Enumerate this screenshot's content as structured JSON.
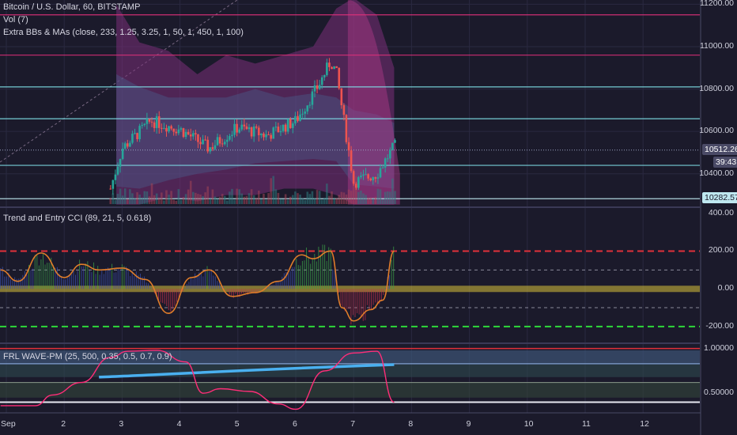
{
  "header": {
    "title": "Bitcoin / U.S. Dollar, 60, BITSTAMP",
    "volume": "Vol (7)",
    "indicator": "Extra BBs & MAs (close, 233, 1.25, 3.25, 1, 50, 1, 450, 1, 100)"
  },
  "panes": {
    "cci_title": "Trend and Entry CCI (89, 21, 5, 0.618)",
    "wave_title": "FRL WAVE-PM (25, 500, 0.35, 0.5, 0.7, 0.9)"
  },
  "colors": {
    "background": "#1b1a2b",
    "candle_up": "#26a69a",
    "candle_down": "#ef5350",
    "cci_line": "#e07d2a",
    "wave_line": "#ff2d78",
    "band_fill": "#8e3d8a"
  },
  "chart_data": [
    {
      "type": "candlestick",
      "title": "Bitcoin / U.S. Dollar, 60, BITSTAMP",
      "y_ticks": [
        11200,
        11000,
        10800,
        10600,
        10400
      ],
      "ylim": [
        10250,
        11220
      ],
      "x_ticks": [
        "Sep",
        "2",
        "3",
        "4",
        "5",
        "6",
        "7",
        "8",
        "9",
        "10",
        "11",
        "12"
      ],
      "last_price": 10512.26,
      "last_price_label": "10512.26",
      "countdown": "39:43",
      "low_marker": 10282.57,
      "low_marker_label": "10282.57",
      "horizontal_levels": [
        11150,
        10960,
        10810,
        10660,
        10440,
        10282.57
      ],
      "close_path_by_day": {
        "x": [
          2.8,
          3.0,
          3.5,
          4.0,
          4.5,
          5.0,
          5.5,
          6.0,
          6.4,
          6.6,
          6.7,
          7.0,
          7.4,
          7.7
        ],
        "y": [
          10330,
          10520,
          10650,
          10610,
          10520,
          10620,
          10580,
          10650,
          10820,
          10930,
          10880,
          10360,
          10400,
          10530
        ]
      }
    },
    {
      "type": "line",
      "title": "Trend and Entry CCI (89, 21, 5, 0.618)",
      "y_ticks": [
        400,
        200,
        0,
        -200
      ],
      "ylim": [
        -280,
        420
      ],
      "reference_lines": [
        200,
        100,
        0,
        -100,
        -200
      ],
      "x": [
        0.9,
        1.2,
        1.6,
        2.0,
        2.3,
        2.6,
        3.0,
        3.4,
        3.8,
        4.2,
        4.5,
        4.9,
        5.3,
        5.7,
        6.1,
        6.3,
        6.6,
        6.8,
        7.0,
        7.3,
        7.5,
        7.7
      ],
      "y": [
        100,
        40,
        190,
        60,
        130,
        100,
        110,
        50,
        -130,
        60,
        100,
        -40,
        -20,
        40,
        180,
        160,
        200,
        -100,
        -170,
        -110,
        -60,
        200
      ]
    },
    {
      "type": "line",
      "title": "FRL WAVE-PM (25, 500, 0.35, 0.5, 0.7, 0.9)",
      "y_ticks": [
        1.0,
        0.5
      ],
      "y_tick_labels": [
        "1.00000",
        "0.50000"
      ],
      "ylim": [
        0.28,
        1.05
      ],
      "x": [
        0.9,
        1.5,
        1.8,
        2.3,
        2.8,
        3.1,
        3.6,
        4.1,
        4.4,
        4.7,
        5.2,
        5.7,
        6.0,
        6.5,
        7.0,
        7.4,
        7.7
      ],
      "y": [
        0.36,
        0.36,
        0.48,
        0.62,
        0.9,
        0.97,
        0.98,
        0.85,
        0.5,
        0.55,
        0.52,
        0.38,
        0.32,
        0.75,
        0.95,
        0.97,
        0.4
      ]
    }
  ]
}
